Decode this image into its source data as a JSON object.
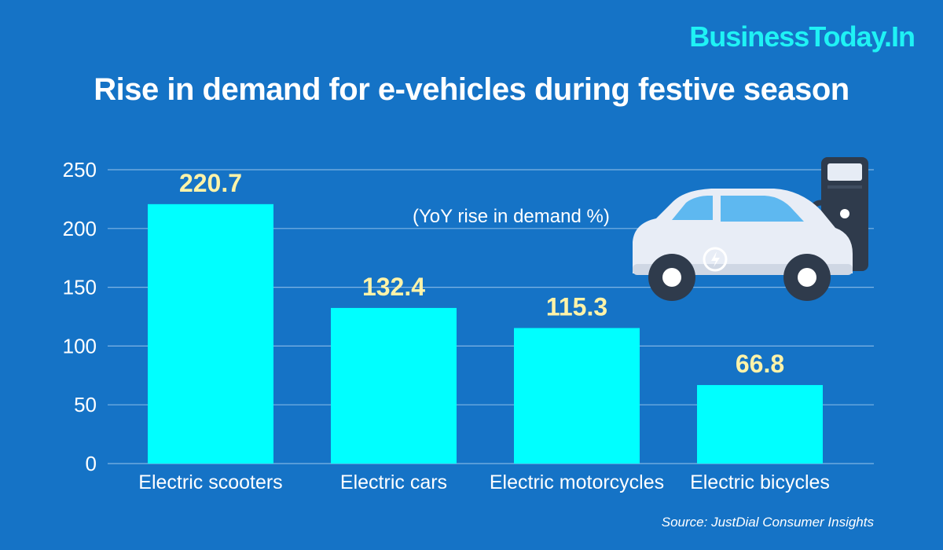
{
  "brand": "BusinessToday.In",
  "source": "Source: JustDial Consumer Insights",
  "colors": {
    "background": "#1573c6",
    "bar": "#00ffff",
    "value_label": "#fff3a8",
    "brand": "#1ff2f5"
  },
  "icons": [
    "ev-car-icon",
    "charging-station-icon"
  ],
  "chart_data": {
    "type": "bar",
    "title": "Rise in demand for e-vehicles during festive season",
    "subtitle": "(YoY rise in demand %)",
    "categories": [
      "Electric scooters",
      "Electric cars",
      "Electric motorcycles",
      "Electric bicycles"
    ],
    "values": [
      220.7,
      132.4,
      115.3,
      66.8
    ],
    "value_labels": [
      "220.7",
      "132.4",
      "115.3",
      "66.8"
    ],
    "yticks": [
      0,
      50,
      100,
      150,
      200,
      250
    ],
    "ylim": [
      0,
      250
    ],
    "grid": true,
    "xlabel": "",
    "ylabel": ""
  }
}
